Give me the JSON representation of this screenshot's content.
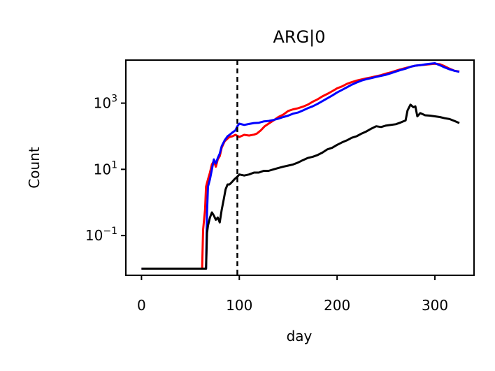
{
  "chart_data": {
    "type": "line",
    "title": "ARG|0",
    "xlabel": "day",
    "ylabel": "Count",
    "xlim": [
      -16,
      340
    ],
    "ylim_log10": [
      -2.2,
      4.3
    ],
    "yscale": "log",
    "x_ticks": [
      {
        "value": 0,
        "label": "0"
      },
      {
        "value": 100,
        "label": "100"
      },
      {
        "value": 200,
        "label": "200"
      },
      {
        "value": 300,
        "label": "300"
      }
    ],
    "y_ticks": [
      {
        "exponent": 3,
        "base": "10",
        "sup": "3"
      },
      {
        "exponent": 1,
        "base": "10",
        "sup": "1"
      },
      {
        "exponent": -1,
        "base": "10",
        "sup": "−1"
      }
    ],
    "vline": {
      "x": 98,
      "style": "dashed",
      "color": "#000000"
    },
    "grid": false,
    "series": [
      {
        "color": "#ff0000",
        "points": [
          [
            0,
            0.01
          ],
          [
            20,
            0.01
          ],
          [
            40,
            0.01
          ],
          [
            55,
            0.01
          ],
          [
            62,
            0.01
          ],
          [
            63,
            0.15
          ],
          [
            65,
            0.6
          ],
          [
            66,
            3
          ],
          [
            68,
            5
          ],
          [
            70,
            8
          ],
          [
            72,
            14
          ],
          [
            74,
            18
          ],
          [
            76,
            12
          ],
          [
            78,
            20
          ],
          [
            80,
            25
          ],
          [
            82,
            45
          ],
          [
            85,
            70
          ],
          [
            88,
            85
          ],
          [
            90,
            95
          ],
          [
            93,
            100
          ],
          [
            96,
            110
          ],
          [
            100,
            95
          ],
          [
            105,
            110
          ],
          [
            110,
            105
          ],
          [
            115,
            112
          ],
          [
            118,
            120
          ],
          [
            122,
            150
          ],
          [
            126,
            200
          ],
          [
            130,
            240
          ],
          [
            135,
            300
          ],
          [
            140,
            380
          ],
          [
            145,
            450
          ],
          [
            150,
            580
          ],
          [
            155,
            650
          ],
          [
            160,
            700
          ],
          [
            165,
            780
          ],
          [
            170,
            900
          ],
          [
            175,
            1100
          ],
          [
            180,
            1300
          ],
          [
            185,
            1600
          ],
          [
            190,
            1900
          ],
          [
            195,
            2300
          ],
          [
            200,
            2800
          ],
          [
            205,
            3200
          ],
          [
            210,
            3800
          ],
          [
            215,
            4300
          ],
          [
            220,
            4800
          ],
          [
            225,
            5200
          ],
          [
            230,
            5600
          ],
          [
            235,
            6000
          ],
          [
            240,
            6500
          ],
          [
            245,
            7000
          ],
          [
            250,
            7800
          ],
          [
            255,
            8500
          ],
          [
            260,
            9500
          ],
          [
            265,
            10500
          ],
          [
            270,
            11500
          ],
          [
            275,
            12500
          ],
          [
            280,
            13500
          ],
          [
            285,
            14000
          ],
          [
            290,
            14500
          ],
          [
            295,
            15000
          ],
          [
            300,
            15500
          ],
          [
            305,
            15000
          ],
          [
            310,
            13000
          ],
          [
            315,
            11000
          ],
          [
            320,
            9500
          ],
          [
            325,
            9000
          ]
        ]
      },
      {
        "color": "#0000ff",
        "points": [
          [
            0,
            0.01
          ],
          [
            20,
            0.01
          ],
          [
            40,
            0.01
          ],
          [
            55,
            0.01
          ],
          [
            66,
            0.01
          ],
          [
            67,
            0.5
          ],
          [
            68,
            3
          ],
          [
            70,
            5
          ],
          [
            72,
            10
          ],
          [
            74,
            20
          ],
          [
            76,
            15
          ],
          [
            78,
            22
          ],
          [
            80,
            30
          ],
          [
            82,
            50
          ],
          [
            85,
            75
          ],
          [
            88,
            100
          ],
          [
            90,
            110
          ],
          [
            93,
            130
          ],
          [
            96,
            150
          ],
          [
            98,
            200
          ],
          [
            100,
            240
          ],
          [
            105,
            220
          ],
          [
            110,
            235
          ],
          [
            115,
            250
          ],
          [
            120,
            255
          ],
          [
            125,
            280
          ],
          [
            130,
            290
          ],
          [
            135,
            310
          ],
          [
            140,
            340
          ],
          [
            145,
            380
          ],
          [
            150,
            420
          ],
          [
            155,
            480
          ],
          [
            160,
            520
          ],
          [
            165,
            600
          ],
          [
            170,
            700
          ],
          [
            175,
            800
          ],
          [
            180,
            950
          ],
          [
            185,
            1150
          ],
          [
            190,
            1400
          ],
          [
            195,
            1700
          ],
          [
            200,
            2100
          ],
          [
            205,
            2500
          ],
          [
            210,
            3000
          ],
          [
            215,
            3600
          ],
          [
            220,
            4200
          ],
          [
            225,
            4800
          ],
          [
            230,
            5300
          ],
          [
            235,
            5700
          ],
          [
            240,
            6200
          ],
          [
            245,
            6700
          ],
          [
            250,
            7200
          ],
          [
            255,
            8000
          ],
          [
            260,
            9000
          ],
          [
            265,
            10000
          ],
          [
            270,
            11000
          ],
          [
            275,
            12500
          ],
          [
            280,
            13500
          ],
          [
            285,
            14000
          ],
          [
            290,
            14800
          ],
          [
            295,
            15500
          ],
          [
            300,
            16000
          ],
          [
            305,
            14000
          ],
          [
            310,
            12000
          ],
          [
            315,
            10500
          ],
          [
            320,
            9500
          ],
          [
            325,
            8800
          ]
        ]
      },
      {
        "color": "#000000",
        "points": [
          [
            0,
            0.01
          ],
          [
            20,
            0.01
          ],
          [
            40,
            0.01
          ],
          [
            55,
            0.01
          ],
          [
            66,
            0.01
          ],
          [
            67,
            0.12
          ],
          [
            68,
            0.2
          ],
          [
            70,
            0.35
          ],
          [
            72,
            0.5
          ],
          [
            74,
            0.4
          ],
          [
            76,
            0.3
          ],
          [
            78,
            0.35
          ],
          [
            80,
            0.25
          ],
          [
            82,
            0.6
          ],
          [
            84,
            1.2
          ],
          [
            86,
            2.5
          ],
          [
            88,
            3.5
          ],
          [
            90,
            3.5
          ],
          [
            92,
            4
          ],
          [
            95,
            5
          ],
          [
            98,
            6
          ],
          [
            100,
            7
          ],
          [
            105,
            6.5
          ],
          [
            110,
            7
          ],
          [
            115,
            8
          ],
          [
            120,
            8
          ],
          [
            125,
            9
          ],
          [
            130,
            9
          ],
          [
            135,
            10
          ],
          [
            140,
            11
          ],
          [
            145,
            12
          ],
          [
            150,
            13
          ],
          [
            155,
            14
          ],
          [
            160,
            16
          ],
          [
            165,
            19
          ],
          [
            170,
            22
          ],
          [
            175,
            24
          ],
          [
            180,
            27
          ],
          [
            185,
            32
          ],
          [
            190,
            40
          ],
          [
            195,
            45
          ],
          [
            200,
            55
          ],
          [
            205,
            65
          ],
          [
            210,
            75
          ],
          [
            215,
            90
          ],
          [
            220,
            100
          ],
          [
            225,
            120
          ],
          [
            230,
            140
          ],
          [
            235,
            170
          ],
          [
            240,
            200
          ],
          [
            245,
            190
          ],
          [
            250,
            210
          ],
          [
            255,
            220
          ],
          [
            260,
            230
          ],
          [
            265,
            260
          ],
          [
            270,
            300
          ],
          [
            272,
            600
          ],
          [
            275,
            900
          ],
          [
            278,
            750
          ],
          [
            280,
            800
          ],
          [
            282,
            400
          ],
          [
            285,
            500
          ],
          [
            290,
            430
          ],
          [
            295,
            420
          ],
          [
            300,
            400
          ],
          [
            305,
            380
          ],
          [
            310,
            350
          ],
          [
            315,
            330
          ],
          [
            320,
            290
          ],
          [
            325,
            250
          ]
        ]
      }
    ]
  }
}
